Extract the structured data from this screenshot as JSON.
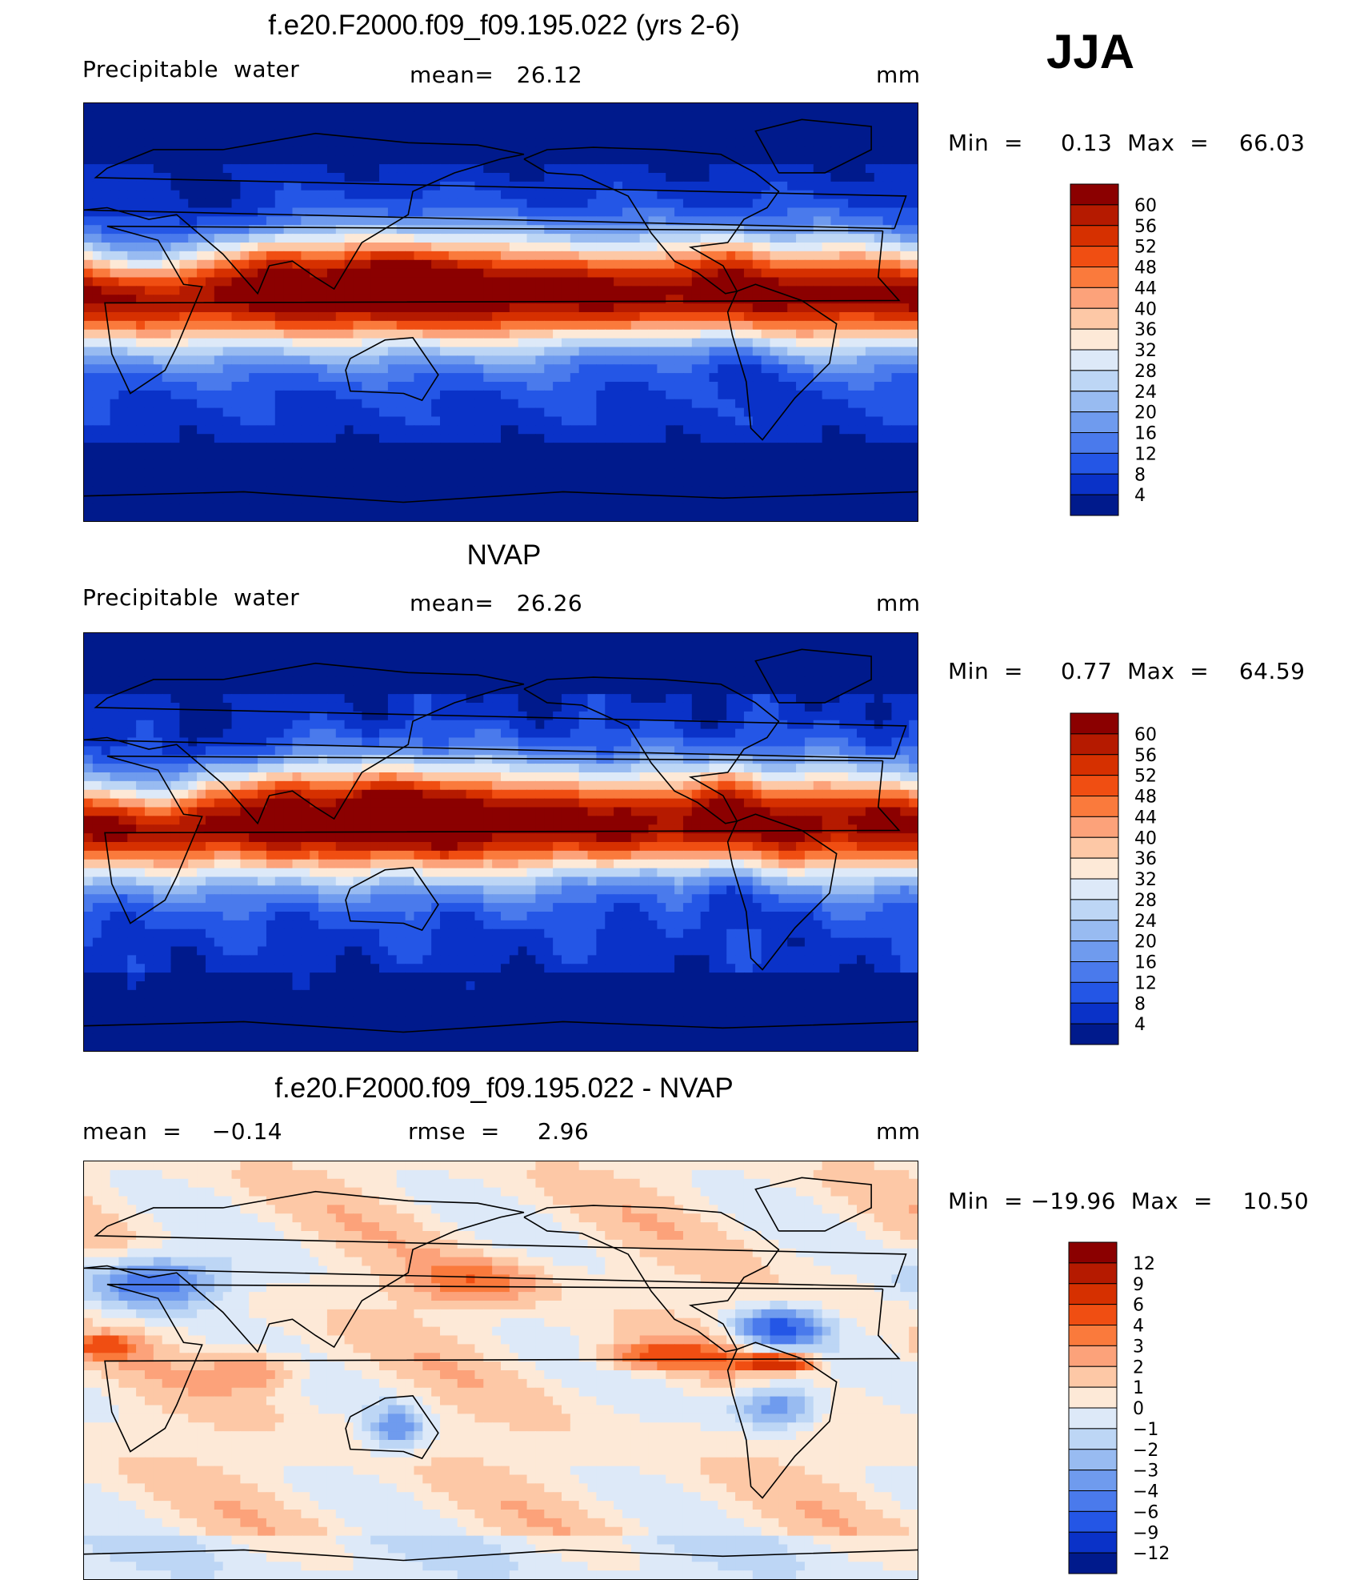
{
  "season": "JJA",
  "panels": [
    {
      "title": "f.e20.F2000.f09_f09.195.022 (yrs 2-6)",
      "left_label": "Precipitable  water",
      "mid_label": "mean=   26.12",
      "units": "mm",
      "minmax": "Min  =     0.13  Max  =    66.03",
      "kind": "model"
    },
    {
      "title": "NVAP",
      "left_label": "Precipitable  water",
      "mid_label": "mean=   26.26",
      "units": "mm",
      "minmax": "Min  =     0.77  Max  =    64.59",
      "kind": "obs"
    },
    {
      "title": "f.e20.F2000.f09_f09.195.022 - NVAP",
      "left_label": "mean  =    −0.14",
      "mid_label": "rmse  =     2.96",
      "units": "mm",
      "minmax": "Min  = −19.96  Max  =    10.50",
      "kind": "diff"
    }
  ],
  "colorbars": [
    {
      "labels": [
        "60",
        "56",
        "52",
        "48",
        "44",
        "40",
        "36",
        "32",
        "28",
        "24",
        "20",
        "16",
        "12",
        "8",
        "4"
      ],
      "colors": [
        "#8b0000",
        "#b51a00",
        "#d63000",
        "#f04e12",
        "#fa7a3c",
        "#fca27a",
        "#fdc8a6",
        "#fde9d7",
        "#dde9f8",
        "#bdd6f5",
        "#98bbf1",
        "#6f9bee",
        "#4a7aec",
        "#2456e6",
        "#0a32c8",
        "#001a8c"
      ]
    },
    {
      "labels": [
        "60",
        "56",
        "52",
        "48",
        "44",
        "40",
        "36",
        "32",
        "28",
        "24",
        "20",
        "16",
        "12",
        "8",
        "4"
      ],
      "colors": [
        "#8b0000",
        "#b51a00",
        "#d63000",
        "#f04e12",
        "#fa7a3c",
        "#fca27a",
        "#fdc8a6",
        "#fde9d7",
        "#dde9f8",
        "#bdd6f5",
        "#98bbf1",
        "#6f9bee",
        "#4a7aec",
        "#2456e6",
        "#0a32c8",
        "#001a8c"
      ]
    },
    {
      "labels": [
        "12",
        "9",
        "6",
        "4",
        "3",
        "2",
        "1",
        "0",
        "−1",
        "−2",
        "−3",
        "−4",
        "−6",
        "−9",
        "−12"
      ],
      "colors": [
        "#8b0000",
        "#b51a00",
        "#d63000",
        "#f04e12",
        "#fa7a3c",
        "#fca27a",
        "#fdc8a6",
        "#fde9d7",
        "#dde9f8",
        "#bdd6f5",
        "#98bbf1",
        "#6f9bee",
        "#4a7aec",
        "#2456e6",
        "#0a32c8",
        "#001a8c"
      ]
    }
  ],
  "chart_data": [
    {
      "type": "heatmap",
      "title": "f.e20.F2000.f09_f09.195.022 (yrs 2-6)",
      "variable": "Precipitable water",
      "units": "mm",
      "mean": 26.12,
      "min": 0.13,
      "max": 66.03,
      "levels": [
        4,
        8,
        12,
        16,
        20,
        24,
        28,
        32,
        36,
        40,
        44,
        48,
        52,
        56,
        60
      ]
    },
    {
      "type": "heatmap",
      "title": "NVAP",
      "variable": "Precipitable water",
      "units": "mm",
      "mean": 26.26,
      "min": 0.77,
      "max": 64.59,
      "levels": [
        4,
        8,
        12,
        16,
        20,
        24,
        28,
        32,
        36,
        40,
        44,
        48,
        52,
        56,
        60
      ]
    },
    {
      "type": "heatmap",
      "title": "f.e20.F2000.f09_f09.195.022 - NVAP",
      "units": "mm",
      "mean": -0.14,
      "rmse": 2.96,
      "min": -19.96,
      "max": 10.5,
      "levels": [
        -12,
        -9,
        -6,
        -4,
        -3,
        -2,
        -1,
        0,
        1,
        2,
        3,
        4,
        6,
        9,
        12
      ]
    }
  ]
}
